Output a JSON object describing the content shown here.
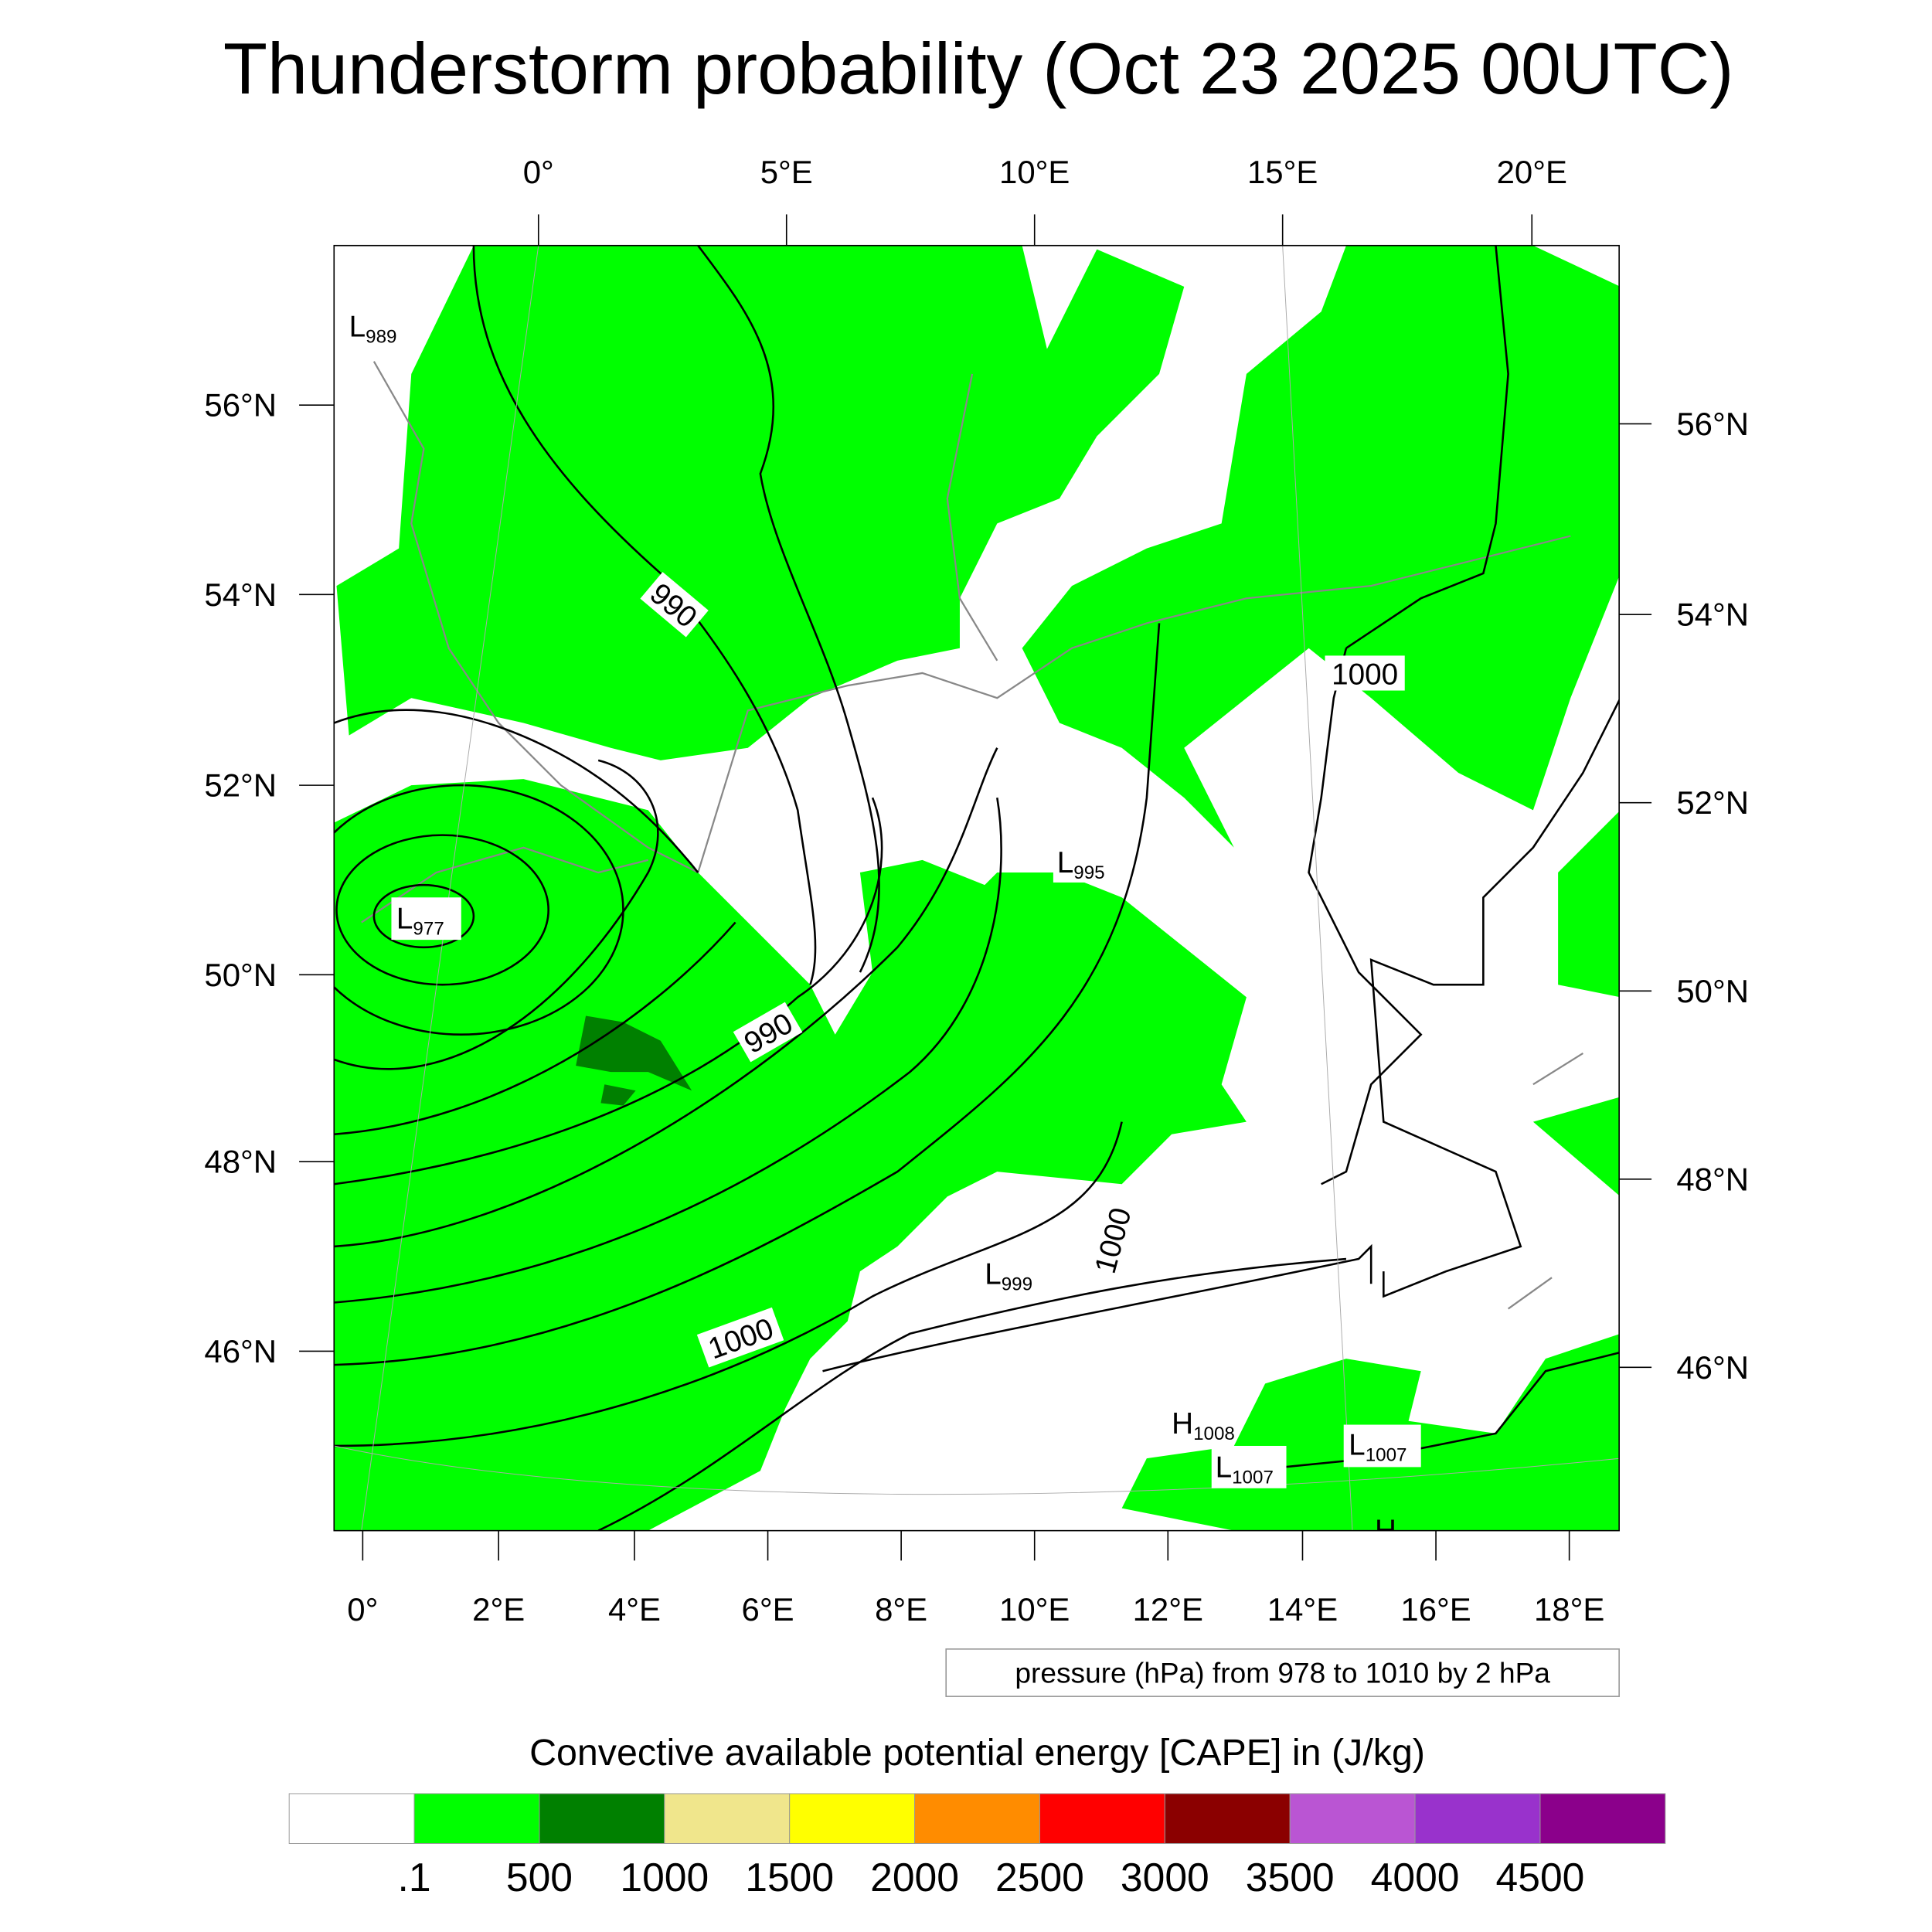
{
  "title": "Thunderstorm probability (Oct 23 2025 00UTC)",
  "axes": {
    "top": [
      "0°",
      "5°E",
      "10°E",
      "15°E",
      "20°E"
    ],
    "bottom": [
      "0°",
      "2°E",
      "4°E",
      "6°E",
      "8°E",
      "10°E",
      "12°E",
      "14°E",
      "16°E",
      "18°E"
    ],
    "left": [
      "56°N",
      "54°N",
      "52°N",
      "50°N",
      "48°N",
      "46°N"
    ],
    "right": [
      "56°N",
      "54°N",
      "52°N",
      "50°N",
      "48°N",
      "46°N"
    ]
  },
  "isobar_labels": [
    "990",
    "990",
    "1000",
    "1000",
    "1000"
  ],
  "pressure_centers": [
    {
      "type": "L",
      "value": "989"
    },
    {
      "type": "L",
      "value": "977"
    },
    {
      "type": "L",
      "value": "995"
    },
    {
      "type": "L",
      "value": "999"
    },
    {
      "type": "H",
      "value": "1008"
    },
    {
      "type": "L",
      "value": "1007"
    },
    {
      "type": "L",
      "value": "1007"
    },
    {
      "type": "H",
      "value": ""
    }
  ],
  "contour_info": "pressure (hPa) from 978 to 1010 by 2 hPa",
  "colorbar": {
    "title": "Convective available potential energy [CAPE] in (J/kg)",
    "colors": [
      "#ffffff",
      "#00ff00",
      "#008000",
      "#f0e68c",
      "#ffff00",
      "#ff8c00",
      "#ff0000",
      "#8b0000",
      "#ba55d3",
      "#9932cc",
      "#8b008b"
    ],
    "labels": [
      ".1",
      "500",
      "1000",
      "1500",
      "2000",
      "2500",
      "3000",
      "3500",
      "4000",
      "4500"
    ]
  },
  "map_colors": {
    "cape_low": "#00ff00",
    "cape_mid": "#008000"
  }
}
